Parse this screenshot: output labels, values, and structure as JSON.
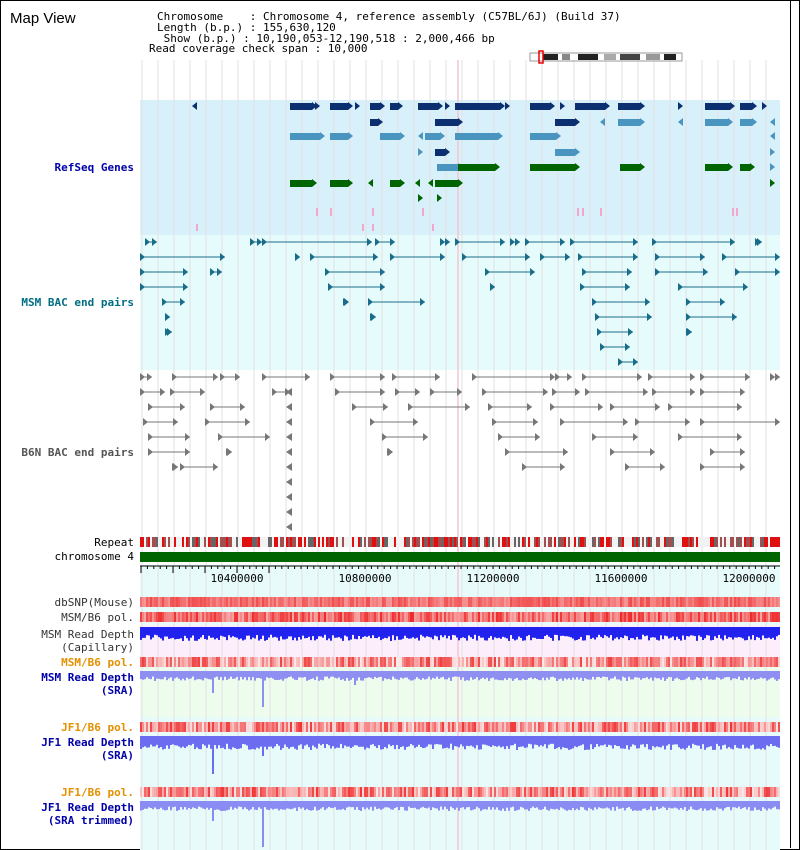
{
  "view": {
    "title": "Map View",
    "info": [
      "Chromosome    : Chromosome 4, reference assembly (C57BL/6J) (Build 37)",
      "Length (b.p.) : 155,630,120",
      " Show (b.p.) : 10,190,053-12,190,518 : 2,000,466 bp",
      "Read coverage check span : 10,000"
    ]
  },
  "colors": {
    "refseq_dark": "#0b2f6f",
    "refseq_mid": "#4a94c0",
    "refseq_green": "#006400",
    "msm_line": "#1a6d8a",
    "b6n_line": "#777777",
    "depth_blue": "#2222ee",
    "depth_lblue": "#6c6cf0",
    "pol_red": "#e22222",
    "track_blue_bg": "#d8f0fa",
    "track_cyan_bg": "#e6fbfb",
    "label_blue": "#0000aa",
    "label_teal": "#006e82",
    "label_orange": "#e49000"
  },
  "tracks": {
    "refseq_label": "RefSeq Genes",
    "msm_bac_label": "MSM BAC end pairs",
    "b6n_bac_label": "B6N BAC end pairs",
    "repeat_label": "Repeat",
    "chromosome_label": "chromosome 4",
    "axis_ticks": [
      "10400000",
      "10800000",
      "11200000",
      "11600000",
      "12000000"
    ],
    "dbsnp_label": "dbSNP(Mouse)",
    "msm_b6_pol_label": "MSM/B6 pol.",
    "msm_depth_cap_label_1": "MSM Read Depth",
    "msm_depth_cap_label_2": "(Capillary)",
    "msm_b6_pol_sra_label": "MSM/B6 pol.",
    "msm_depth_sra_label_1": "MSM Read Depth",
    "msm_depth_sra_label_2": "(SRA)",
    "jf1_b6_pol_label": "JF1/B6 pol.",
    "jf1_depth_sra_label_1": "JF1 Read Depth",
    "jf1_depth_sra_label_2": "(SRA)",
    "jf1_b6_pol_trim_label": "JF1/B6 pol.",
    "jf1_depth_trim_label_1": "JF1 Read Depth",
    "jf1_depth_trim_label_2": "(SRA trimmed)"
  }
}
